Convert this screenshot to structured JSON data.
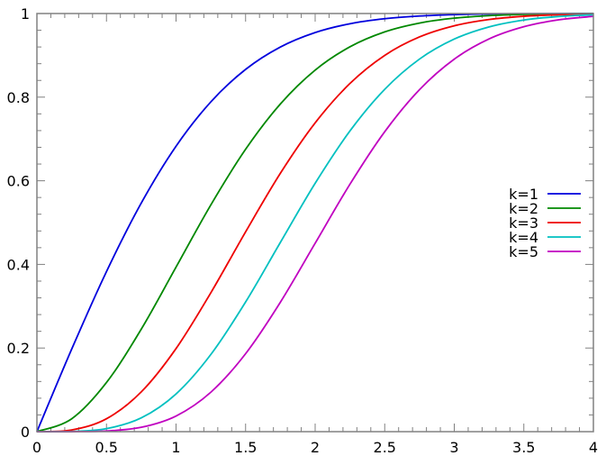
{
  "chart_data": {
    "type": "line",
    "title": "",
    "xlabel": "",
    "ylabel": "",
    "xlim": [
      0,
      4
    ],
    "ylim": [
      0,
      1
    ],
    "xticks": [
      0,
      0.5,
      1,
      1.5,
      2,
      2.5,
      3,
      3.5,
      4
    ],
    "xtick_labels": [
      "0",
      "0.5",
      "1",
      "1.5",
      "2",
      "2.5",
      "3",
      "3.5",
      "4"
    ],
    "yticks": [
      0,
      0.2,
      0.4,
      0.6,
      0.8,
      1
    ],
    "ytick_labels": [
      "0",
      "0.2",
      "0.4",
      "0.6",
      "0.8",
      "1"
    ],
    "grid": false,
    "legend_placement": "right",
    "x": [
      0,
      0.25,
      0.5,
      0.75,
      1,
      1.25,
      1.5,
      1.75,
      2,
      2.25,
      2.5,
      2.75,
      3,
      3.25,
      3.5,
      3.75,
      4
    ],
    "series": [
      {
        "name": "k=1",
        "color": "#0000dd",
        "values": [
          0,
          0.1974,
          0.3829,
          0.5467,
          0.6827,
          0.7887,
          0.8664,
          0.9199,
          0.9545,
          0.9756,
          0.9876,
          0.994,
          0.9973,
          0.9989,
          0.9995,
          0.9998,
          0.9999
        ]
      },
      {
        "name": "k=2",
        "color": "#008800",
        "values": [
          0,
          0.0308,
          0.1175,
          0.2452,
          0.3935,
          0.5422,
          0.6753,
          0.7837,
          0.8647,
          0.9204,
          0.9561,
          0.9772,
          0.9889,
          0.9949,
          0.9978,
          0.9991,
          0.9997
        ]
      },
      {
        "name": "k=3",
        "color": "#ee0000",
        "values": [
          0,
          0.0041,
          0.0309,
          0.0951,
          0.1987,
          0.3321,
          0.4778,
          0.6179,
          0.7385,
          0.8327,
          0.8999,
          0.944,
          0.9707,
          0.9857,
          0.9934,
          0.9972,
          0.9989
        ]
      },
      {
        "name": "k=4",
        "color": "#00c0c0",
        "values": [
          0,
          0.0005,
          0.0072,
          0.0329,
          0.0902,
          0.1845,
          0.3101,
          0.4526,
          0.594,
          0.7191,
          0.8187,
          0.891,
          0.9389,
          0.968,
          0.9844,
          0.9929,
          0.997
        ]
      },
      {
        "name": "k=5",
        "color": "#c000c0",
        "values": [
          0,
          0.0001,
          0.0016,
          0.0104,
          0.0374,
          0.0943,
          0.1864,
          0.3096,
          0.4505,
          0.5917,
          0.7173,
          0.8179,
          0.8909,
          0.9392,
          0.9684,
          0.9849,
          0.9932
        ]
      }
    ]
  }
}
